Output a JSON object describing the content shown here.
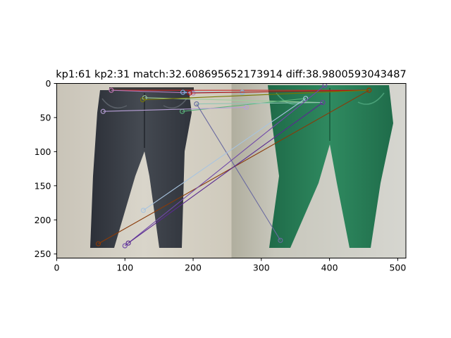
{
  "chart_data": {
    "type": "scatter",
    "title": "kp1:61 kp2:31 match:32.608695652173914 diff:38.9800593043487",
    "xlabel": "",
    "ylabel": "",
    "xlim": [
      0,
      512
    ],
    "ylim": [
      256,
      0
    ],
    "x_ticks": [
      0,
      100,
      200,
      300,
      400,
      500
    ],
    "y_ticks": [
      0,
      50,
      100,
      150,
      200,
      250
    ],
    "panels": [
      {
        "name": "left-image",
        "description": "dark denim jeans",
        "x_range": [
          0,
          256
        ]
      },
      {
        "name": "right-image",
        "description": "green jeans",
        "x_range": [
          256,
          512
        ]
      }
    ],
    "matches": [
      {
        "p1": [
          80,
          10
        ],
        "p2": [
          458,
          10
        ],
        "color": "#c82828"
      },
      {
        "p1": [
          80,
          10
        ],
        "p2": [
          200,
          14
        ],
        "color": "#b07ab8"
      },
      {
        "p1": [
          185,
          13
        ],
        "p2": [
          272,
          13
        ],
        "color": "#7fb0e0"
      },
      {
        "p1": [
          195,
          14
        ],
        "p2": [
          458,
          10
        ],
        "color": "#b01010"
      },
      {
        "p1": [
          129,
          21
        ],
        "p2": [
          390,
          28
        ],
        "color": "#9ecf9e"
      },
      {
        "p1": [
          126,
          24
        ],
        "p2": [
          458,
          10
        ],
        "color": "#787800"
      },
      {
        "p1": [
          184,
          41
        ],
        "p2": [
          365,
          22
        ],
        "color": "#5ab47a"
      },
      {
        "p1": [
          68,
          41
        ],
        "p2": [
          278,
          35
        ],
        "color": "#b8a0d8"
      },
      {
        "p1": [
          205,
          30
        ],
        "p2": [
          390,
          28
        ],
        "color": "#8fc6b4"
      },
      {
        "p1": [
          205,
          30
        ],
        "p2": [
          328,
          230
        ],
        "color": "#6a6aa0"
      },
      {
        "p1": [
          127,
          186
        ],
        "p2": [
          365,
          22
        ],
        "color": "#a8c4e0"
      },
      {
        "p1": [
          61,
          235
        ],
        "p2": [
          458,
          10
        ],
        "color": "#8a3a08"
      },
      {
        "p1": [
          100,
          238
        ],
        "p2": [
          393,
          3
        ],
        "color": "#7048a8"
      },
      {
        "p1": [
          105,
          234
        ],
        "p2": [
          390,
          28
        ],
        "color": "#5a2a90"
      }
    ]
  }
}
